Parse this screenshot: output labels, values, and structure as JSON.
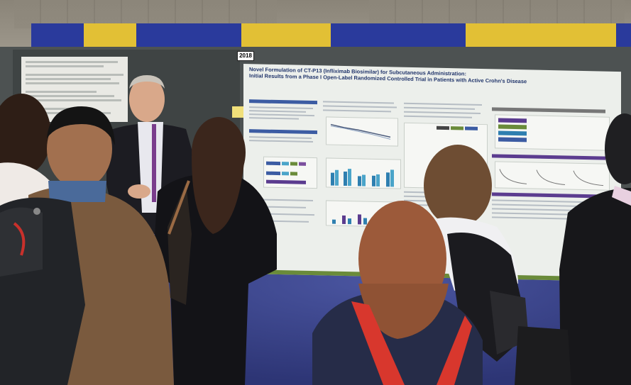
{
  "booth_number": "2018",
  "poster": {
    "title_line1": "Novel Formulation of CT-P13 (Infliximab Biosimilar) for Subcutaneous Administration:",
    "title_line2": "Initial Results from a Phase I Open-Label Randomized Controlled Trial in Patients with Active Crohn's Disease"
  },
  "colors": {
    "drape_blue": "#2a3a9c",
    "drape_gold": "#e2c035",
    "carpet": "#34408a",
    "poster_bg": "#ecefeb",
    "poster_title": "#21356b",
    "poster_green_edge": "#6a8b3a",
    "backpack_red": "#d8372d"
  }
}
